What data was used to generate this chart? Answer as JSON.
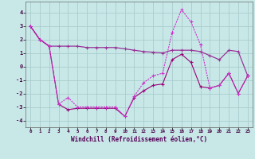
{
  "x": [
    0,
    1,
    2,
    3,
    4,
    5,
    6,
    7,
    8,
    9,
    10,
    11,
    12,
    13,
    14,
    15,
    16,
    17,
    18,
    19,
    20,
    21,
    22,
    23
  ],
  "line1": [
    3.0,
    2.0,
    1.5,
    1.5,
    1.5,
    1.5,
    1.4,
    1.4,
    1.4,
    1.4,
    1.3,
    1.2,
    1.1,
    1.05,
    1.0,
    1.2,
    1.2,
    1.2,
    1.1,
    0.8,
    0.5,
    1.2,
    1.1,
    -0.7
  ],
  "line2": [
    3.0,
    2.0,
    1.5,
    -2.8,
    -2.3,
    -3.0,
    -3.0,
    -3.0,
    -3.0,
    -3.0,
    -3.7,
    -2.2,
    -1.2,
    -0.7,
    -0.5,
    2.5,
    4.2,
    3.3,
    1.6,
    -1.6,
    -1.4,
    -0.5,
    -2.0,
    -0.7
  ],
  "line3": [
    3.0,
    2.0,
    1.5,
    -2.8,
    -3.2,
    -3.1,
    -3.1,
    -3.1,
    -3.1,
    -3.1,
    -3.7,
    -2.3,
    -1.8,
    -1.4,
    -1.3,
    0.5,
    0.9,
    0.3,
    -1.5,
    -1.6,
    -1.4,
    -0.5,
    -2.0,
    -0.7
  ],
  "line_color1": "#993399",
  "line_color2": "#cc33cc",
  "line_color3": "#990077",
  "bg_color": "#c8e8e8",
  "grid_color": "#aacccc",
  "xlabel": "Windchill (Refroidissement éolien,°C)",
  "ylim": [
    -4.5,
    4.8
  ],
  "xlim": [
    -0.5,
    23.5
  ],
  "xticks": [
    0,
    1,
    2,
    3,
    4,
    5,
    6,
    7,
    8,
    9,
    10,
    11,
    12,
    13,
    14,
    15,
    16,
    17,
    18,
    19,
    20,
    21,
    22,
    23
  ],
  "yticks": [
    -4,
    -3,
    -2,
    -1,
    0,
    1,
    2,
    3,
    4
  ]
}
